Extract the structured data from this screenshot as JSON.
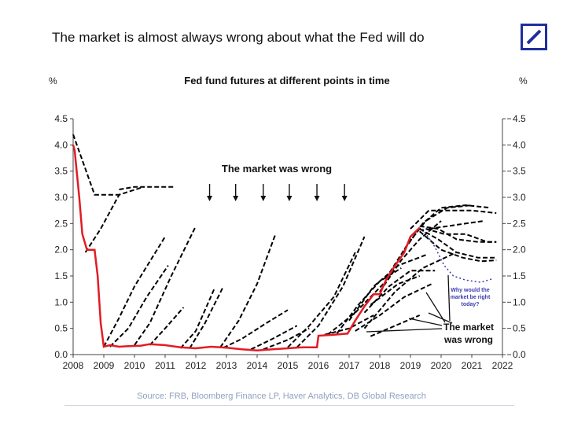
{
  "headline": "The market is almost always wrong about what the Fed will do",
  "logo": {
    "icon": "deutsche-bank-slash-logo",
    "color": "#1f2f9c"
  },
  "source": "Source: FRB, Bloomberg Finance LP, Haver Analytics, DB Global Research",
  "chart_data": {
    "type": "line",
    "title": "Fed fund futures at different points in time",
    "ylabel_left": "%",
    "ylabel_right": "%",
    "xlim": [
      2008,
      2022
    ],
    "ylim": [
      0,
      4.5
    ],
    "xticks": [
      "2008",
      "2009",
      "2010",
      "2011",
      "2012",
      "2013",
      "2014",
      "2015",
      "2016",
      "2017",
      "2018",
      "2019",
      "2020",
      "2021",
      "2022"
    ],
    "yticks": [
      "0.0",
      "0.5",
      "1.0",
      "1.5",
      "2.0",
      "2.5",
      "3.0",
      "3.5",
      "4.0",
      "4.5"
    ],
    "grid": false,
    "colors": {
      "actual": "#e31b23",
      "futures": "#000000",
      "scenario": "#3a3ab0"
    },
    "annotations": {
      "top": "The market was wrong",
      "bottom_1": "The market",
      "bottom_2": "was wrong",
      "question_1": "Why would the",
      "question_2": "market be right",
      "question_3": "today?"
    },
    "top_arrow_x": [
      2012.45,
      2013.3,
      2014.2,
      2015.05,
      2015.95,
      2016.85
    ],
    "actual": {
      "x": [
        2008.0,
        2008.05,
        2008.2,
        2008.3,
        2008.45,
        2008.6,
        2008.7,
        2008.8,
        2008.9,
        2009.0,
        2009.2,
        2009.5,
        2009.8,
        2010.2,
        2010.5,
        2011.0,
        2011.5,
        2012.0,
        2012.5,
        2013.0,
        2013.5,
        2014.0,
        2014.5,
        2015.0,
        2015.5,
        2015.95,
        2016.0,
        2016.5,
        2016.95,
        2017.2,
        2017.5,
        2017.8,
        2018.0,
        2018.2,
        2018.5,
        2018.8,
        2019.0,
        2019.3
      ],
      "y": [
        4.0,
        3.9,
        3.0,
        2.3,
        2.0,
        2.0,
        2.0,
        1.5,
        0.6,
        0.15,
        0.18,
        0.15,
        0.16,
        0.17,
        0.2,
        0.18,
        0.14,
        0.12,
        0.15,
        0.13,
        0.1,
        0.08,
        0.1,
        0.12,
        0.14,
        0.14,
        0.36,
        0.38,
        0.4,
        0.65,
        0.92,
        1.15,
        1.15,
        1.42,
        1.7,
        1.95,
        2.25,
        2.42
      ]
    },
    "futures": [
      {
        "x": [
          2008.0,
          2008.7,
          2009.6
        ],
        "y": [
          4.2,
          3.05,
          3.05
        ]
      },
      {
        "x": [
          2008.4,
          2008.9,
          2009.5,
          2010.3
        ],
        "y": [
          1.95,
          2.4,
          3.05,
          3.2
        ]
      },
      {
        "x": [
          2009.5,
          2010.0,
          2010.5,
          2011.3
        ],
        "y": [
          3.15,
          3.2,
          3.2,
          3.2
        ]
      },
      {
        "x": [
          2009.0,
          2009.5,
          2010.0,
          2011.0
        ],
        "y": [
          0.15,
          0.7,
          1.3,
          2.25
        ]
      },
      {
        "x": [
          2009.2,
          2009.8,
          2010.4,
          2011.1
        ],
        "y": [
          0.15,
          0.5,
          1.1,
          1.7
        ]
      },
      {
        "x": [
          2010.0,
          2010.5,
          2011.2,
          2012.0
        ],
        "y": [
          0.18,
          0.6,
          1.5,
          2.45
        ]
      },
      {
        "x": [
          2010.5,
          2011.0,
          2011.6
        ],
        "y": [
          0.18,
          0.5,
          0.9
        ]
      },
      {
        "x": [
          2011.5,
          2012.0,
          2012.6
        ],
        "y": [
          0.12,
          0.45,
          1.25
        ]
      },
      {
        "x": [
          2011.8,
          2012.3,
          2012.9
        ],
        "y": [
          0.12,
          0.6,
          1.3
        ]
      },
      {
        "x": [
          2012.8,
          2013.4,
          2014.0,
          2014.6
        ],
        "y": [
          0.14,
          0.65,
          1.35,
          2.3
        ]
      },
      {
        "x": [
          2012.9,
          2013.5,
          2014.3,
          2015.0
        ],
        "y": [
          0.13,
          0.3,
          0.6,
          0.85
        ]
      },
      {
        "x": [
          2013.8,
          2014.5,
          2015.3
        ],
        "y": [
          0.1,
          0.3,
          0.55
        ]
      },
      {
        "x": [
          2014.2,
          2015.0,
          2015.7
        ],
        "y": [
          0.1,
          0.28,
          0.5
        ]
      },
      {
        "x": [
          2015.0,
          2015.7,
          2016.5,
          2017.2
        ],
        "y": [
          0.14,
          0.55,
          1.1,
          1.95
        ]
      },
      {
        "x": [
          2015.3,
          2016.0,
          2016.8,
          2017.5
        ],
        "y": [
          0.14,
          0.55,
          1.3,
          2.25
        ]
      },
      {
        "x": [
          2016.2,
          2017.0,
          2017.8
        ],
        "y": [
          0.38,
          0.5,
          0.75
        ]
      },
      {
        "x": [
          2016.3,
          2017.2,
          2018.2
        ],
        "y": [
          0.38,
          0.8,
          1.4
        ]
      },
      {
        "x": [
          2016.6,
          2017.3,
          2018.0,
          2018.7
        ],
        "y": [
          0.4,
          0.95,
          1.4,
          1.65
        ]
      },
      {
        "x": [
          2017.0,
          2017.8,
          2018.6,
          2019.5
        ],
        "y": [
          0.65,
          1.3,
          1.7,
          1.9
        ]
      },
      {
        "x": [
          2017.2,
          2018.0,
          2018.8,
          2019.7
        ],
        "y": [
          0.45,
          0.75,
          1.1,
          1.35
        ]
      },
      {
        "x": [
          2017.5,
          2018.5,
          2019.4,
          2020.5
        ],
        "y": [
          0.5,
          1.2,
          1.65,
          1.95
        ]
      },
      {
        "x": [
          2017.5,
          2018.3,
          2019.0,
          2019.8
        ],
        "y": [
          0.8,
          1.3,
          1.6,
          1.6
        ]
      },
      {
        "x": [
          2017.7,
          2018.5,
          2019.3
        ],
        "y": [
          0.35,
          0.55,
          0.75
        ]
      },
      {
        "x": [
          2017.7,
          2018.6,
          2019.3
        ],
        "y": [
          0.95,
          1.35,
          1.5
        ]
      },
      {
        "x": [
          2018.0,
          2018.7,
          2019.3,
          2020.0
        ],
        "y": [
          1.2,
          1.8,
          2.2,
          2.55
        ]
      },
      {
        "x": [
          2018.2,
          2018.9,
          2019.5,
          2020.2,
          2021.0
        ],
        "y": [
          1.45,
          2.1,
          2.55,
          2.8,
          2.85
        ]
      },
      {
        "x": [
          2018.8,
          2019.4,
          2020.0,
          2020.8,
          2021.6
        ],
        "y": [
          2.0,
          2.5,
          2.8,
          2.85,
          2.8
        ]
      },
      {
        "x": [
          2019.0,
          2019.6,
          2020.3,
          2021.0,
          2021.8
        ],
        "y": [
          2.4,
          2.75,
          2.75,
          2.75,
          2.7
        ]
      },
      {
        "x": [
          2019.3,
          2019.9,
          2020.5,
          2021.2,
          2021.8
        ],
        "y": [
          2.45,
          2.4,
          2.2,
          2.15,
          2.15
        ]
      },
      {
        "x": [
          2019.3,
          2019.9,
          2020.5,
          2021.2,
          2021.8
        ],
        "y": [
          2.4,
          2.2,
          1.95,
          1.85,
          1.85
        ]
      },
      {
        "x": [
          2019.3,
          2020.0,
          2020.7,
          2021.3,
          2021.8
        ],
        "y": [
          2.35,
          2.0,
          1.85,
          1.78,
          1.8
        ]
      },
      {
        "x": [
          2019.5,
          2020.1,
          2020.8,
          2021.5,
          2021.8
        ],
        "y": [
          2.4,
          2.3,
          2.3,
          2.15,
          2.15
        ]
      },
      {
        "x": [
          2019.6,
          2020.2,
          2020.8,
          2021.4
        ],
        "y": [
          2.4,
          2.45,
          2.5,
          2.55
        ]
      }
    ],
    "scenario": {
      "x": [
        2019.4,
        2019.8,
        2020.1,
        2020.4,
        2020.8,
        2021.3,
        2021.7
      ],
      "y": [
        2.4,
        2.05,
        1.7,
        1.5,
        1.42,
        1.38,
        1.45
      ]
    }
  }
}
